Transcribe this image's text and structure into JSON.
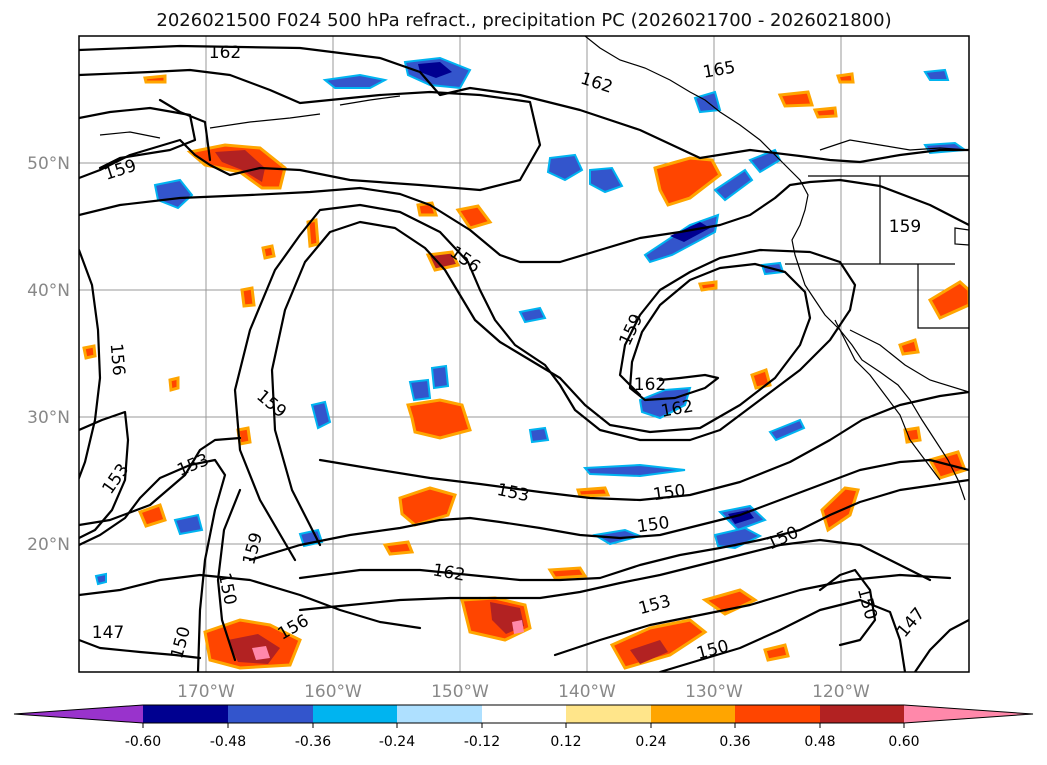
{
  "title": "2026021500 F024 500 hPa refract., precipitation PC (2026021700 - 2026021800)",
  "latitude_labels": [
    "50°N",
    "40°N",
    "30°N",
    "20°N"
  ],
  "longitude_labels": [
    "170°W",
    "160°W",
    "150°W",
    "140°W",
    "130°W",
    "120°W"
  ],
  "contour_labels": [
    "162",
    "162",
    "165",
    "159",
    "156",
    "159",
    "156",
    "159",
    "162",
    "162",
    "159",
    "153",
    "153",
    "153",
    "150",
    "150",
    "150",
    "159",
    "150",
    "150",
    "162",
    "153",
    "156",
    "147",
    "150",
    "150",
    "147"
  ],
  "colorbar": {
    "tick_labels": [
      "-0.60",
      "-0.48",
      "-0.36",
      "-0.24",
      "-0.12",
      "0.12",
      "0.24",
      "0.36",
      "0.48",
      "0.60"
    ],
    "colors": [
      "#9933cc",
      "#000090",
      "#3355cc",
      "#00b4f0",
      "#aee0ff",
      "#ffffff",
      "#ffe58a",
      "#ffa500",
      "#ff4500",
      "#b22222",
      "#ff88aa"
    ]
  }
}
